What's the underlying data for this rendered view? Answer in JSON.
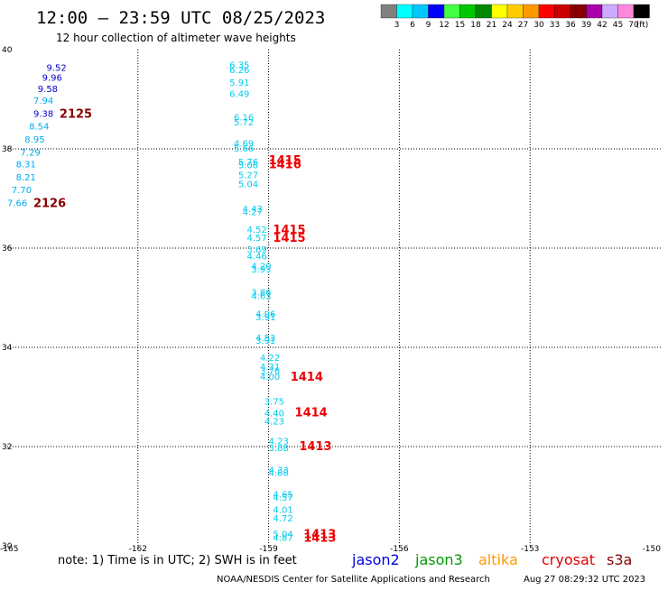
{
  "header": {
    "title": "12:00 – 23:59 UTC 08/25/2023",
    "subtitle": "12 hour collection of altimeter wave heights"
  },
  "colorbar": {
    "colors": [
      "#808080",
      "#00ffff",
      "#00c8ff",
      "#0000ff",
      "#44ff44",
      "#00c800",
      "#008800",
      "#ffff00",
      "#ffcc00",
      "#ff9900",
      "#ff0000",
      "#cc0000",
      "#880000",
      "#aa00aa",
      "#ccaaff",
      "#ff88dd",
      "#000000"
    ],
    "labels": [
      "3",
      "6",
      "9",
      "12",
      "15",
      "18",
      "21",
      "24",
      "27",
      "30",
      "33",
      "36",
      "39",
      "42",
      "45",
      "70"
    ],
    "unit": "(ft)"
  },
  "footer": {
    "note": "note:  1) Time is in UTC;  2) SWH is in feet",
    "credit": "NOAA/NESDIS Center for Satellite Applications and Research",
    "timestamp": "Aug 27 08:29:32 UTC 2023",
    "satellites": [
      {
        "name": "jason2",
        "color": "#0000dd"
      },
      {
        "name": "jason3",
        "color": "#009900"
      },
      {
        "name": "altika",
        "color": "#ff9900"
      },
      {
        "name": "cryosat",
        "color": "#dd0000"
      },
      {
        "name": "s3a",
        "color": "#880000"
      }
    ]
  },
  "chart_data": {
    "type": "scatter",
    "xlim": [
      -165,
      -150
    ],
    "ylim": [
      30,
      40
    ],
    "x_ticks": [
      "-165",
      "-162",
      "-159",
      "-156",
      "-153",
      "-150"
    ],
    "y_ticks": [
      "40",
      "38",
      "36",
      "34",
      "32",
      "30"
    ],
    "grid": true,
    "points": [
      {
        "x": -164.1,
        "y": 39.65,
        "label": "9.52",
        "color": "#0000cc"
      },
      {
        "x": -164.2,
        "y": 39.45,
        "label": "9.96",
        "color": "#0000cc"
      },
      {
        "x": -164.3,
        "y": 39.22,
        "label": "9.58",
        "color": "#0000cc"
      },
      {
        "x": -164.4,
        "y": 38.98,
        "label": "7.94",
        "color": "#00aaee"
      },
      {
        "x": -164.4,
        "y": 38.72,
        "label": "9.38",
        "color": "#0000cc"
      },
      {
        "x": -164.5,
        "y": 38.46,
        "label": "8.54",
        "color": "#00aaee"
      },
      {
        "x": -164.6,
        "y": 38.2,
        "label": "8.95",
        "color": "#00aaee"
      },
      {
        "x": -164.7,
        "y": 37.94,
        "label": "7.29",
        "color": "#00aaee"
      },
      {
        "x": -164.8,
        "y": 37.7,
        "label": "8.31",
        "color": "#00aaee"
      },
      {
        "x": -164.8,
        "y": 37.44,
        "label": "8.21",
        "color": "#00aaee"
      },
      {
        "x": -164.9,
        "y": 37.18,
        "label": "7.70",
        "color": "#00aaee"
      },
      {
        "x": -165.0,
        "y": 36.92,
        "label": "7.66",
        "color": "#00aaee"
      },
      {
        "x": -159.9,
        "y": 39.7,
        "label": "6.35",
        "color": "#00ccee"
      },
      {
        "x": -159.9,
        "y": 39.6,
        "label": "6.26",
        "color": "#00ccee"
      },
      {
        "x": -159.9,
        "y": 39.35,
        "label": "5.91",
        "color": "#00ccee"
      },
      {
        "x": -159.9,
        "y": 39.12,
        "label": "6.49",
        "color": "#00ccee"
      },
      {
        "x": -159.8,
        "y": 38.65,
        "label": "6.16",
        "color": "#00ccee"
      },
      {
        "x": -159.8,
        "y": 38.55,
        "label": "5.72",
        "color": "#00ccee"
      },
      {
        "x": -159.8,
        "y": 38.12,
        "label": "4.69",
        "color": "#00ccee"
      },
      {
        "x": -159.8,
        "y": 38.02,
        "label": "5.66",
        "color": "#00ccee"
      },
      {
        "x": -159.7,
        "y": 37.75,
        "label": "5.76",
        "color": "#00ccee"
      },
      {
        "x": -159.7,
        "y": 37.68,
        "label": "5.06",
        "color": "#00ccee"
      },
      {
        "x": -159.7,
        "y": 37.48,
        "label": "5.27",
        "color": "#00ccee"
      },
      {
        "x": -159.7,
        "y": 37.3,
        "label": "5.04",
        "color": "#00ccee"
      },
      {
        "x": -159.6,
        "y": 36.8,
        "label": "4.43",
        "color": "#00ccee"
      },
      {
        "x": -159.6,
        "y": 36.74,
        "label": "4.27",
        "color": "#00ccee"
      },
      {
        "x": -159.5,
        "y": 36.38,
        "label": "4.52",
        "color": "#00ccee"
      },
      {
        "x": -159.5,
        "y": 36.22,
        "label": "4.57",
        "color": "#00ccee"
      },
      {
        "x": -159.5,
        "y": 35.98,
        "label": "3.69",
        "color": "#00ccee"
      },
      {
        "x": -159.5,
        "y": 35.85,
        "label": "4.46",
        "color": "#00ccee"
      },
      {
        "x": -159.4,
        "y": 35.65,
        "label": "4.20",
        "color": "#00ccee"
      },
      {
        "x": -159.4,
        "y": 35.58,
        "label": "3.93",
        "color": "#00ccee"
      },
      {
        "x": -159.4,
        "y": 35.12,
        "label": "3.86",
        "color": "#00ccee"
      },
      {
        "x": -159.4,
        "y": 35.05,
        "label": "4.63",
        "color": "#00ccee"
      },
      {
        "x": -159.3,
        "y": 34.68,
        "label": "4.06",
        "color": "#00ccee"
      },
      {
        "x": -159.3,
        "y": 34.62,
        "label": "3.91",
        "color": "#00ccee"
      },
      {
        "x": -159.3,
        "y": 34.2,
        "label": "4.53",
        "color": "#00ccee"
      },
      {
        "x": -159.3,
        "y": 34.15,
        "label": "3.91",
        "color": "#00ccee"
      },
      {
        "x": -159.2,
        "y": 33.8,
        "label": "4.22",
        "color": "#00ccee"
      },
      {
        "x": -159.2,
        "y": 33.62,
        "label": "4.31",
        "color": "#00ccee"
      },
      {
        "x": -159.2,
        "y": 33.54,
        "label": "3.76",
        "color": "#00ccee"
      },
      {
        "x": -159.2,
        "y": 33.42,
        "label": "4.00",
        "color": "#00ccee"
      },
      {
        "x": -159.1,
        "y": 32.92,
        "label": "3.75",
        "color": "#00ccee"
      },
      {
        "x": -159.1,
        "y": 32.68,
        "label": "4.40",
        "color": "#00ccee"
      },
      {
        "x": -159.1,
        "y": 32.52,
        "label": "4.23",
        "color": "#00ccee"
      },
      {
        "x": -159.0,
        "y": 32.12,
        "label": "4.23",
        "color": "#00ccee"
      },
      {
        "x": -159.0,
        "y": 31.98,
        "label": "3.88",
        "color": "#00ccee"
      },
      {
        "x": -159.0,
        "y": 31.54,
        "label": "4.33",
        "color": "#00ccee"
      },
      {
        "x": -159.0,
        "y": 31.48,
        "label": "4.88",
        "color": "#00ccee"
      },
      {
        "x": -158.9,
        "y": 31.05,
        "label": "4.65",
        "color": "#00ccee"
      },
      {
        "x": -158.9,
        "y": 30.98,
        "label": "4.57",
        "color": "#00ccee"
      },
      {
        "x": -158.9,
        "y": 30.74,
        "label": "4.01",
        "color": "#00ccee"
      },
      {
        "x": -158.9,
        "y": 30.56,
        "label": "4.72",
        "color": "#00ccee"
      },
      {
        "x": -158.9,
        "y": 30.25,
        "label": "5.04",
        "color": "#00ccee"
      },
      {
        "x": -158.9,
        "y": 30.17,
        "label": "4.87",
        "color": "#00ccee"
      }
    ],
    "time_labels": [
      {
        "x": -163.8,
        "y": 38.72,
        "label": "2125",
        "color": "#880000"
      },
      {
        "x": -164.4,
        "y": 36.92,
        "label": "2126",
        "color": "#880000"
      },
      {
        "x": -159.0,
        "y": 37.78,
        "label": "1415",
        "color": "#ee0000"
      },
      {
        "x": -159.0,
        "y": 37.7,
        "label": "1416",
        "color": "#ee0000"
      },
      {
        "x": -158.9,
        "y": 36.38,
        "label": "1415",
        "color": "#ee0000"
      },
      {
        "x": -158.9,
        "y": 36.22,
        "label": "1415",
        "color": "#ee0000"
      },
      {
        "x": -158.5,
        "y": 33.42,
        "label": "1414",
        "color": "#ee0000"
      },
      {
        "x": -158.4,
        "y": 32.7,
        "label": "1414",
        "color": "#ee0000"
      },
      {
        "x": -158.3,
        "y": 32.02,
        "label": "1413",
        "color": "#ee0000"
      },
      {
        "x": -158.2,
        "y": 30.25,
        "label": "1413",
        "color": "#ee0000"
      },
      {
        "x": -158.2,
        "y": 30.17,
        "label": "1413",
        "color": "#ee0000"
      }
    ]
  }
}
